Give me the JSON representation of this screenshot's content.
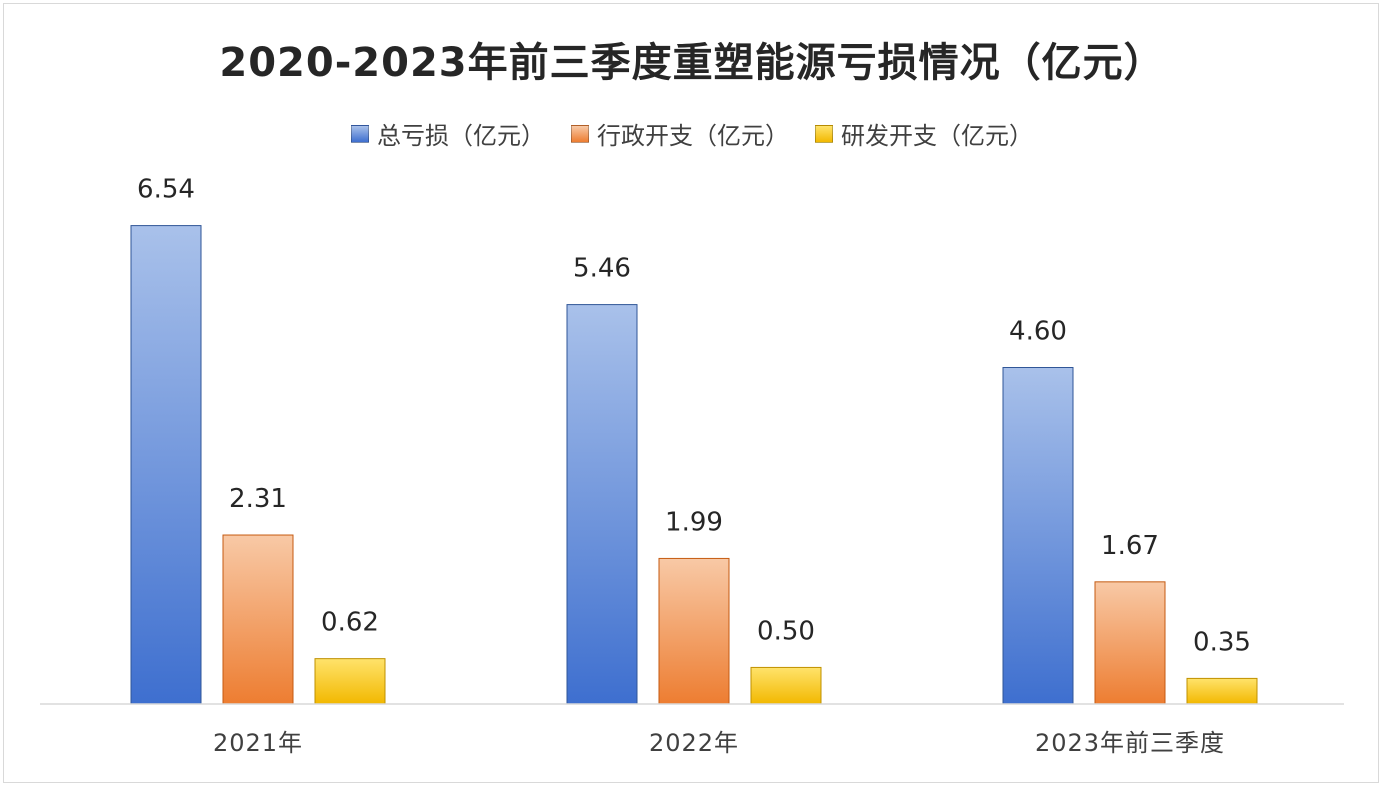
{
  "chart_data": {
    "type": "bar",
    "title": "2020-2023年前三季度重塑能源亏损情况（亿元）",
    "categories": [
      "2021年",
      "2022年",
      "2023年前三季度"
    ],
    "series": [
      {
        "name": "总亏损（亿元）",
        "values": [
          6.54,
          5.46,
          4.6
        ],
        "labels": [
          "6.54",
          "5.46",
          "4.60"
        ],
        "color_top": "#a9c1ea",
        "color_bottom": "#3e6fcf",
        "stroke": "#2f5597"
      },
      {
        "name": "行政开支（亿元）",
        "values": [
          2.31,
          1.99,
          1.67
        ],
        "labels": [
          "2.31",
          "1.99",
          "1.67"
        ],
        "color_top": "#f8c9a6",
        "color_bottom": "#ed7d31",
        "stroke": "#c55a11"
      },
      {
        "name": "研发开支（亿元）",
        "values": [
          0.62,
          0.5,
          0.35
        ],
        "labels": [
          "0.62",
          "0.50",
          "0.35"
        ],
        "color_top": "#ffe36b",
        "color_bottom": "#f2b800",
        "stroke": "#bf9000"
      }
    ],
    "ylim": [
      0,
      7.3
    ],
    "grid": false,
    "legend_position": "top"
  }
}
